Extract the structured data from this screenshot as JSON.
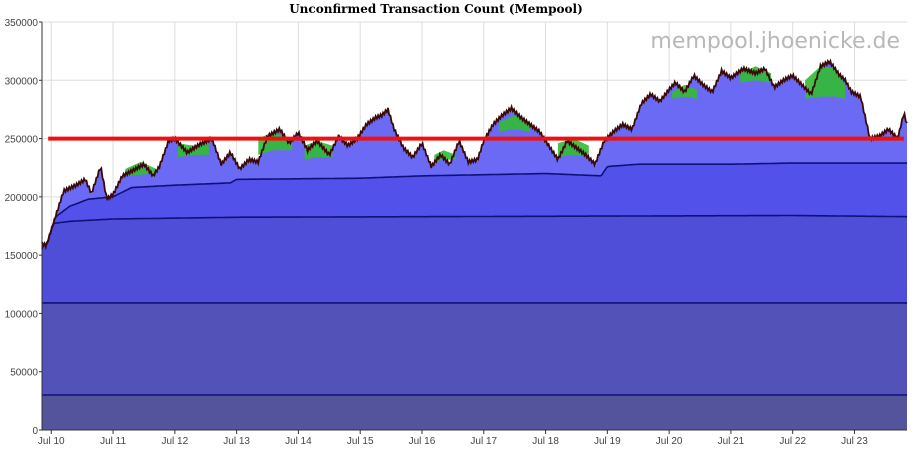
{
  "title": "Unconfirmed Transaction Count (Mempool)",
  "watermark": "mempool.jhoenicke.de",
  "colors": {
    "background": "#ffffff",
    "grid": "#dddddd",
    "axis": "#333333",
    "layer_dark": "#55559a",
    "layer_mid_dark": "#5353b5",
    "layer_mid": "#4e4ed6",
    "layer_light": "#5050e8",
    "layer_top": "#6a6af5",
    "green_band": "#33bb33",
    "outline": "#3a0a0a",
    "band_line": "#10107a",
    "threshold": "#ee1111"
  },
  "chart_data": {
    "type": "area",
    "title": "Unconfirmed Transaction Count (Mempool)",
    "xlabel": "",
    "ylabel": "",
    "ylim": [
      0,
      350000
    ],
    "xlim": [
      9.85,
      23.85
    ],
    "grid": true,
    "legend": "none",
    "y_ticks": [
      0,
      50000,
      100000,
      150000,
      200000,
      250000,
      300000,
      350000
    ],
    "y_tick_labels": [
      "0",
      "50000",
      "100000",
      "150000",
      "200000",
      "250000",
      "300000",
      "350000"
    ],
    "x_ticks": [
      10,
      11,
      12,
      13,
      14,
      15,
      16,
      17,
      18,
      19,
      20,
      21,
      22,
      23
    ],
    "x_tick_labels": [
      "Jul 10",
      "Jul 11",
      "Jul 12",
      "Jul 13",
      "Jul 14",
      "Jul 15",
      "Jul 16",
      "Jul 17",
      "Jul 18",
      "Jul 19",
      "Jul 20",
      "Jul 21",
      "Jul 22",
      "Jul 23"
    ],
    "total": {
      "x": [
        9.85,
        9.92,
        10.05,
        10.2,
        10.4,
        10.55,
        10.65,
        10.8,
        10.9,
        11.0,
        11.15,
        11.3,
        11.5,
        11.65,
        11.75,
        11.9,
        12.0,
        12.2,
        12.4,
        12.6,
        12.75,
        12.9,
        13.05,
        13.2,
        13.35,
        13.5,
        13.7,
        13.85,
        14.0,
        14.15,
        14.3,
        14.5,
        14.65,
        14.8,
        14.95,
        15.1,
        15.25,
        15.35,
        15.45,
        15.55,
        15.7,
        15.85,
        16.0,
        16.15,
        16.3,
        16.45,
        16.6,
        16.75,
        16.9,
        17.0,
        17.15,
        17.3,
        17.45,
        17.6,
        17.75,
        17.9,
        18.05,
        18.2,
        18.35,
        18.5,
        18.65,
        18.8,
        18.95,
        19.1,
        19.25,
        19.4,
        19.55,
        19.7,
        19.85,
        20.0,
        20.1,
        20.25,
        20.4,
        20.55,
        20.7,
        20.85,
        21.0,
        21.2,
        21.4,
        21.55,
        21.7,
        21.85,
        22.0,
        22.15,
        22.3,
        22.45,
        22.6,
        22.75,
        22.85,
        22.95,
        23.1,
        23.25,
        23.4,
        23.55,
        23.7,
        23.8,
        23.85
      ],
      "values": [
        160000,
        158000,
        180000,
        205000,
        210000,
        215000,
        203000,
        226000,
        198000,
        202000,
        218000,
        222000,
        228000,
        218000,
        226000,
        248000,
        250000,
        238000,
        245000,
        250000,
        228000,
        238000,
        224000,
        232000,
        230000,
        252000,
        258000,
        246000,
        255000,
        240000,
        248000,
        236000,
        252000,
        244000,
        250000,
        262000,
        268000,
        270000,
        275000,
        258000,
        242000,
        234000,
        246000,
        226000,
        236000,
        228000,
        248000,
        230000,
        232000,
        248000,
        262000,
        270000,
        276000,
        268000,
        262000,
        256000,
        244000,
        232000,
        248000,
        242000,
        236000,
        228000,
        248000,
        256000,
        262000,
        258000,
        280000,
        288000,
        282000,
        292000,
        298000,
        290000,
        304000,
        296000,
        290000,
        308000,
        302000,
        310000,
        306000,
        310000,
        294000,
        300000,
        304000,
        296000,
        288000,
        312000,
        316000,
        305000,
        300000,
        290000,
        286000,
        250000,
        252000,
        258000,
        250000,
        272000,
        262000
      ]
    },
    "green_band": [
      {
        "x": [
          11.2,
          11.45,
          11.7
        ],
        "low": [
          218000,
          219000,
          220000
        ],
        "high": [
          224000,
          230000,
          224000
        ]
      },
      {
        "x": [
          12.05,
          12.3,
          12.55
        ],
        "low": [
          234000,
          236000,
          236000
        ],
        "high": [
          246000,
          244000,
          247000
        ]
      },
      {
        "x": [
          13.35,
          13.6,
          13.9
        ],
        "low": [
          236000,
          240000,
          240000
        ],
        "high": [
          250000,
          256000,
          248000
        ]
      },
      {
        "x": [
          14.1,
          14.3,
          14.55
        ],
        "low": [
          232000,
          234000,
          234000
        ],
        "high": [
          244000,
          248000,
          244000
        ]
      },
      {
        "x": [
          16.2,
          16.35,
          16.55
        ],
        "low": [
          230000,
          232000,
          232000
        ],
        "high": [
          236000,
          240000,
          236000
        ]
      },
      {
        "x": [
          17.25,
          17.5,
          17.75
        ],
        "low": [
          256000,
          258000,
          256000
        ],
        "high": [
          264000,
          270000,
          264000
        ]
      },
      {
        "x": [
          18.2,
          18.45,
          18.7
        ],
        "low": [
          234000,
          236000,
          234000
        ],
        "high": [
          246000,
          250000,
          244000
        ]
      },
      {
        "x": [
          20.05,
          20.25,
          20.45
        ],
        "low": [
          284000,
          286000,
          284000
        ],
        "high": [
          290000,
          296000,
          292000
        ]
      },
      {
        "x": [
          21.15,
          21.4,
          21.65
        ],
        "low": [
          298000,
          300000,
          298000
        ],
        "high": [
          306000,
          312000,
          306000
        ]
      },
      {
        "x": [
          22.2,
          22.45,
          22.7,
          22.85
        ],
        "low": [
          284000,
          286000,
          286000,
          284000
        ],
        "high": [
          300000,
          312000,
          310000,
          296000
        ]
      }
    ],
    "layers": [
      {
        "x": [
          9.85,
          23.85
        ],
        "values": [
          30000,
          30000
        ]
      },
      {
        "x": [
          9.85,
          23.85
        ],
        "values": [
          109000,
          109000
        ]
      },
      {
        "x": [
          9.85,
          10.0,
          10.3,
          11.0,
          13.0,
          16.0,
          19.0,
          22.0,
          23.85
        ],
        "values": [
          155000,
          177000,
          179000,
          181000,
          182500,
          183000,
          183500,
          184000,
          183000
        ]
      },
      {
        "x": [
          9.85,
          10.0,
          10.3,
          10.6,
          11.0,
          11.3,
          12.0,
          12.9,
          13.0,
          15.0,
          16.0,
          17.0,
          18.0,
          18.9,
          19.0,
          19.5,
          21.0,
          22.0,
          23.85
        ],
        "values": [
          158000,
          180000,
          192000,
          198000,
          200000,
          208000,
          210000,
          212000,
          215000,
          216000,
          218000,
          219000,
          220000,
          218000,
          226000,
          228000,
          228000,
          229000,
          229000
        ]
      }
    ],
    "threshold": {
      "value": 250000,
      "x_start": 9.95,
      "x_end": 23.8
    }
  }
}
